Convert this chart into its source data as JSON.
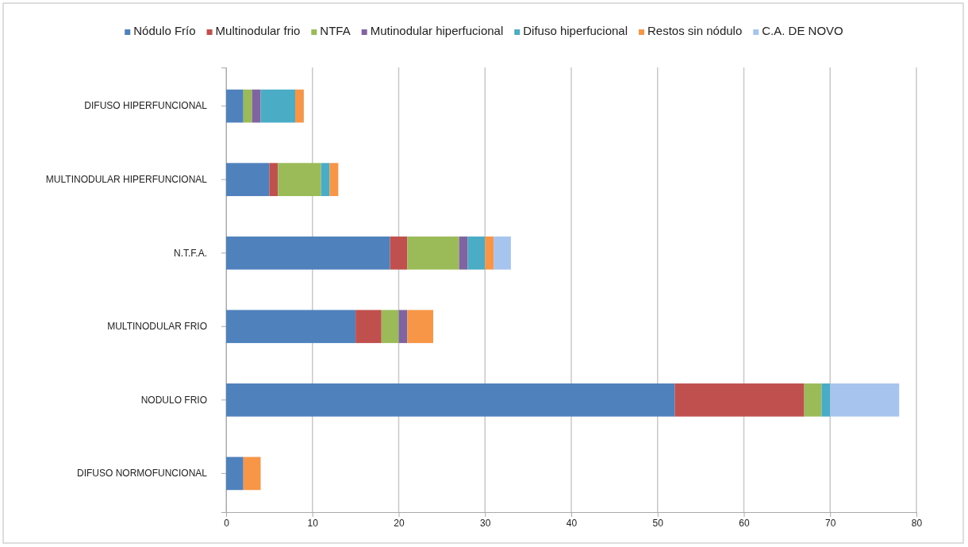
{
  "chart_data": {
    "type": "bar",
    "orientation": "horizontal",
    "stacked": true,
    "categories": [
      "DIFUSO HIPERFUNCIONAL",
      "MULTINODULAR HIPERFUNCIONAL",
      "N.T.F.A.",
      "MULTINODULAR FRIO",
      "NODULO FRIO",
      "DIFUSO NORMOFUNCIONAL"
    ],
    "series": [
      {
        "name": "Nódulo Frío",
        "color": "#4f81bd",
        "values": [
          2,
          5,
          19,
          15,
          52,
          2
        ]
      },
      {
        "name": "Multinodular frio",
        "color": "#c0504d",
        "values": [
          0,
          1,
          2,
          3,
          15,
          0
        ]
      },
      {
        "name": "NTFA",
        "color": "#9bbb59",
        "values": [
          1,
          5,
          6,
          2,
          2,
          0
        ]
      },
      {
        "name": "Mutinodular hiperfucional",
        "color": "#8064a2",
        "values": [
          1,
          0,
          1,
          1,
          0,
          0
        ]
      },
      {
        "name": "Difuso hiperfucional",
        "color": "#4bacc6",
        "values": [
          4,
          1,
          2,
          0,
          1,
          0
        ]
      },
      {
        "name": "Restos sin nódulo",
        "color": "#f79646",
        "values": [
          1,
          1,
          1,
          3,
          0,
          2
        ]
      },
      {
        "name": "C.A. DE NOVO",
        "color": "#a7c4ee",
        "values": [
          0,
          0,
          2,
          0,
          8,
          0
        ]
      }
    ],
    "xlim": [
      0,
      80
    ],
    "xticks": [
      0,
      10,
      20,
      30,
      40,
      50,
      60,
      70,
      80
    ],
    "grid": "x",
    "legend": "top"
  }
}
